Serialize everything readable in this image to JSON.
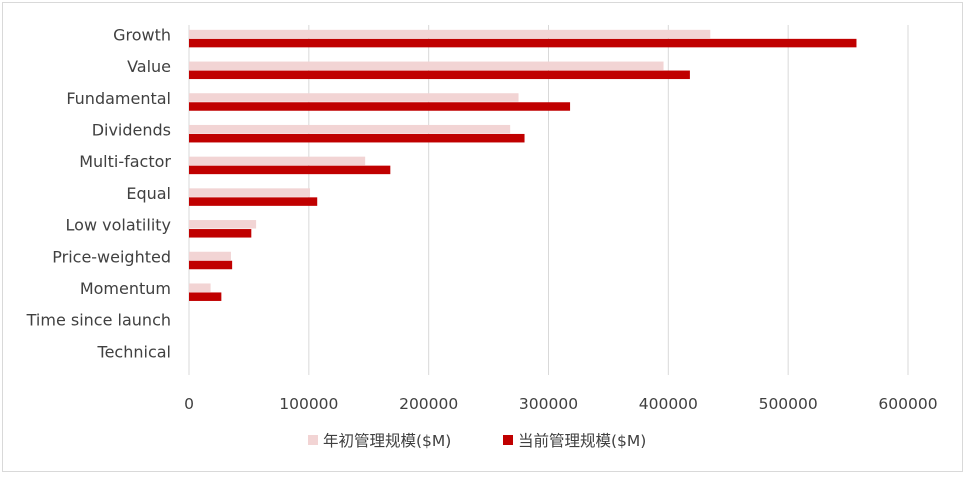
{
  "chart_data": {
    "type": "bar",
    "orientation": "horizontal",
    "categories": [
      "Growth",
      "Value",
      "Fundamental",
      "Dividends",
      "Multi-factor",
      "Equal",
      "Low volatility",
      "Price-weighted",
      "Momentum",
      "Time since launch",
      "Technical"
    ],
    "series": [
      {
        "name": "年初管理规模($M)",
        "color": "#f2d4d4",
        "values": [
          435000,
          396000,
          275000,
          268000,
          147000,
          101000,
          56000,
          35000,
          18000,
          0,
          0
        ]
      },
      {
        "name": "当前管理规模($M)",
        "color": "#c00000",
        "values": [
          557000,
          418000,
          318000,
          280000,
          168000,
          107000,
          52000,
          36000,
          27000,
          0,
          0
        ]
      }
    ],
    "x_ticks": [
      "0",
      "100000",
      "200000",
      "300000",
      "400000",
      "500000",
      "600000"
    ],
    "xlim": [
      0,
      600000
    ],
    "grid": "vertical",
    "legend_position": "bottom"
  }
}
